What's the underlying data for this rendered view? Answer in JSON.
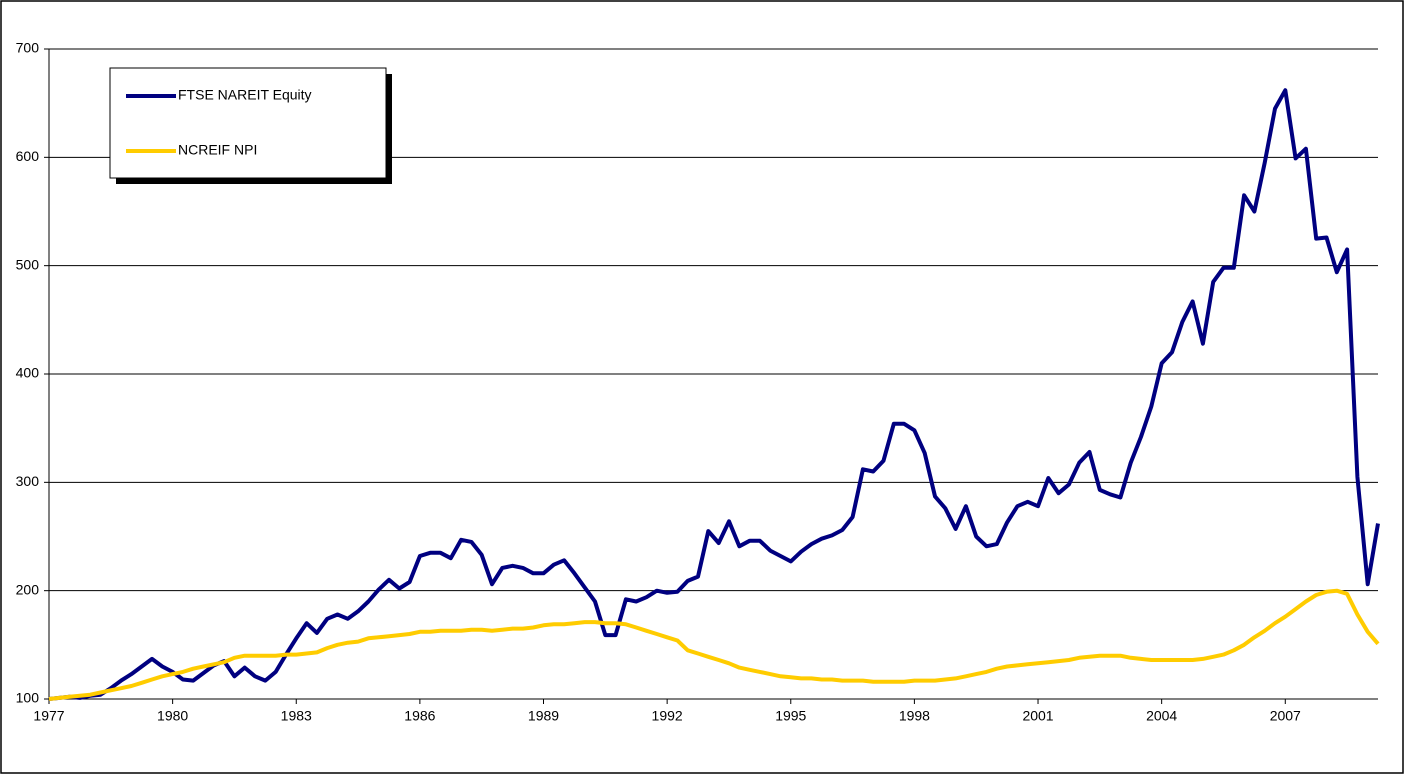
{
  "chart_data": {
    "type": "line",
    "x": [
      1977,
      1977.25,
      1977.5,
      1977.75,
      1978,
      1978.25,
      1978.5,
      1978.75,
      1979,
      1979.25,
      1979.5,
      1979.75,
      1980,
      1980.25,
      1980.5,
      1980.75,
      1981,
      1981.25,
      1981.5,
      1981.75,
      1982,
      1982.25,
      1982.5,
      1982.75,
      1983,
      1983.25,
      1983.5,
      1983.75,
      1984,
      1984.25,
      1984.5,
      1984.75,
      1985,
      1985.25,
      1985.5,
      1985.75,
      1986,
      1986.25,
      1986.5,
      1986.75,
      1987,
      1987.25,
      1987.5,
      1987.75,
      1988,
      1988.25,
      1988.5,
      1988.75,
      1989,
      1989.25,
      1989.5,
      1989.75,
      1990,
      1990.25,
      1990.5,
      1990.75,
      1991,
      1991.25,
      1991.5,
      1991.75,
      1992,
      1992.25,
      1992.5,
      1992.75,
      1993,
      1993.25,
      1993.5,
      1993.75,
      1994,
      1994.25,
      1994.5,
      1994.75,
      1995,
      1995.25,
      1995.5,
      1995.75,
      1996,
      1996.25,
      1996.5,
      1996.75,
      1997,
      1997.25,
      1997.5,
      1997.75,
      1998,
      1998.25,
      1998.5,
      1998.75,
      1999,
      1999.25,
      1999.5,
      1999.75,
      2000,
      2000.25,
      2000.5,
      2000.75,
      2001,
      2001.25,
      2001.5,
      2001.75,
      2002,
      2002.25,
      2002.5,
      2002.75,
      2003,
      2003.25,
      2003.5,
      2003.75,
      2004,
      2004.25,
      2004.5,
      2004.75,
      2005,
      2005.25,
      2005.5,
      2005.75,
      2006,
      2006.25,
      2006.5,
      2006.75,
      2007,
      2007.25,
      2007.5,
      2007.75,
      2008,
      2008.25,
      2008.5,
      2008.75,
      2009,
      2009.25
    ],
    "series": [
      {
        "name": "FTSE NAREIT Equity",
        "color": "#000080",
        "values": [
          100,
          101,
          102,
          101,
          103,
          104,
          110,
          117,
          123,
          130,
          137,
          130,
          125,
          118,
          117,
          124,
          131,
          135,
          121,
          129,
          121,
          117,
          125,
          141,
          156,
          170,
          161,
          174,
          178,
          174,
          181,
          190,
          201,
          210,
          202,
          208,
          232,
          235,
          235,
          230,
          247,
          245,
          233,
          206,
          221,
          223,
          221,
          216,
          216,
          224,
          228,
          216,
          203,
          190,
          159,
          159,
          192,
          190,
          194,
          200,
          198,
          199,
          209,
          213,
          255,
          244,
          264,
          241,
          246,
          246,
          237,
          232,
          227,
          236,
          243,
          248,
          251,
          256,
          268,
          312,
          310,
          320,
          354,
          354,
          348,
          327,
          287,
          276,
          257,
          278,
          250,
          241,
          243,
          263,
          278,
          282,
          278,
          304,
          290,
          298,
          318,
          328,
          293,
          289,
          286,
          318,
          342,
          370,
          410,
          420,
          448,
          467,
          428,
          485,
          498,
          498,
          565,
          550,
          595,
          645,
          662,
          599,
          608,
          525,
          526,
          494,
          515,
          305,
          206,
          262
        ]
      },
      {
        "name": "NCREIF NPI",
        "color": "#ffcc00",
        "values": [
          100,
          101,
          102,
          103,
          104,
          106,
          108,
          110,
          112,
          115,
          118,
          121,
          123,
          125,
          128,
          130,
          132,
          134,
          138,
          140,
          140,
          140,
          140,
          141,
          141,
          142,
          143,
          147,
          150,
          152,
          153,
          156,
          157,
          158,
          159,
          160,
          162,
          162,
          163,
          163,
          163,
          164,
          164,
          163,
          164,
          165,
          165,
          166,
          168,
          169,
          169,
          170,
          171,
          171,
          170,
          170,
          169,
          166,
          163,
          160,
          157,
          154,
          145,
          142,
          139,
          136,
          133,
          129,
          127,
          125,
          123,
          121,
          120,
          119,
          119,
          118,
          118,
          117,
          117,
          117,
          116,
          116,
          116,
          116,
          117,
          117,
          117,
          118,
          119,
          121,
          123,
          125,
          128,
          130,
          131,
          132,
          133,
          134,
          135,
          136,
          138,
          139,
          140,
          140,
          140,
          138,
          137,
          136,
          136,
          136,
          136,
          136,
          137,
          139,
          141,
          145,
          150,
          157,
          163,
          170,
          176,
          183,
          190,
          196,
          199,
          200,
          197,
          178,
          162,
          151
        ]
      }
    ],
    "xlim": [
      1977,
      2009.25
    ],
    "xticks": [
      1977,
      1980,
      1983,
      1986,
      1989,
      1992,
      1995,
      1998,
      2001,
      2004,
      2007
    ],
    "ylim": [
      100,
      700
    ],
    "yticks": [
      100,
      200,
      300,
      400,
      500,
      600,
      700
    ],
    "grid": true,
    "legend": "upper left"
  }
}
